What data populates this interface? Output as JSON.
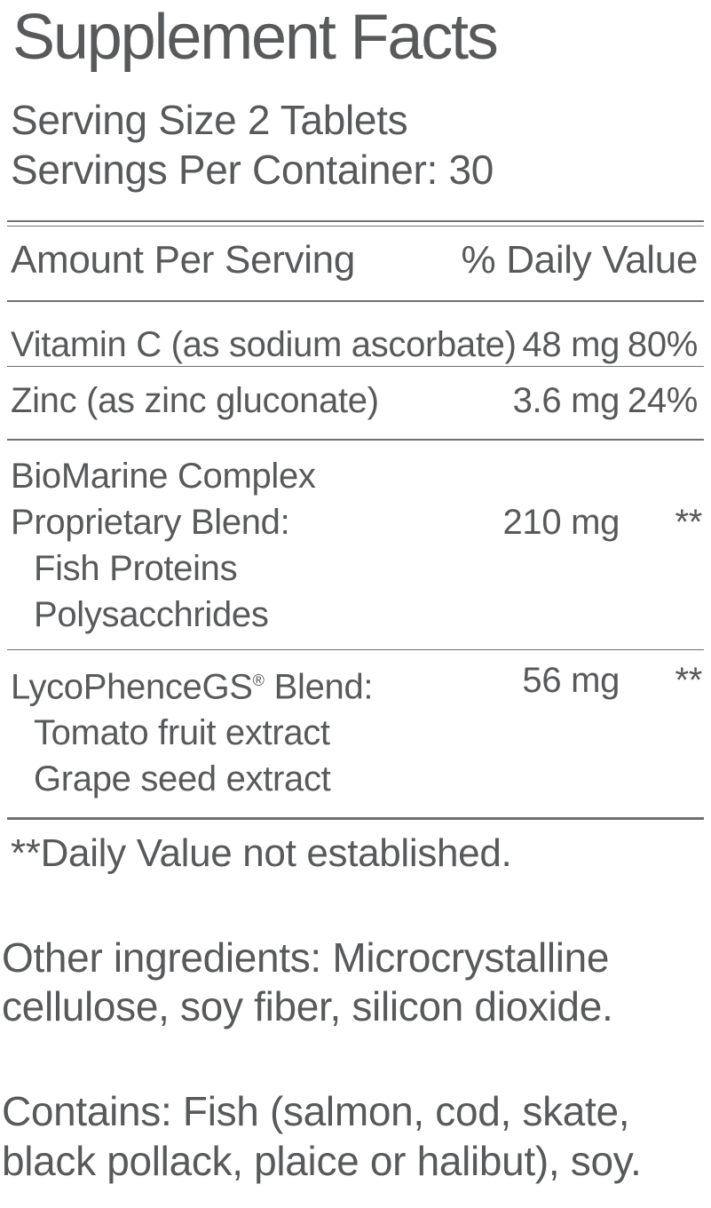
{
  "colors": {
    "text": "#58595b",
    "rule": "#6f7072",
    "background": "#ffffff"
  },
  "label": {
    "title": "Supplement Facts",
    "serving_size": "Serving Size 2 Tablets",
    "servings_per_container": "Servings Per Container: 30",
    "columns": {
      "amount_per_serving": "Amount Per Serving",
      "percent_daily_value": "% Daily Value"
    },
    "nutrients": [
      {
        "name": "Vitamin C (as sodium ascorbate)",
        "amount": "48 mg",
        "daily_value": "80%"
      },
      {
        "name": "Zinc (as zinc gluconate)",
        "amount": "3.6 mg",
        "daily_value": "24%"
      }
    ],
    "blends": [
      {
        "name_line1": "BioMarine Complex",
        "name_line2": "Proprietary Blend:",
        "amount": "210 mg",
        "daily_value": "**",
        "sub_ingredients": [
          "Fish Proteins",
          "Polysacchrides"
        ]
      },
      {
        "name": "LycoPhenceGS",
        "trademark": "®",
        "name_suffix": " Blend:",
        "amount": "56 mg",
        "daily_value": "**",
        "sub_ingredients": [
          "Tomato fruit extract",
          "Grape seed extract"
        ]
      }
    ],
    "footnote": "**Daily Value not established.",
    "other_ingredients": "Other ingredients: Microcrystalline cellulose, soy fiber, silicon dioxide.",
    "contains": "Contains: Fish (salmon, cod, skate, black pollack, plaice or halibut), soy."
  }
}
